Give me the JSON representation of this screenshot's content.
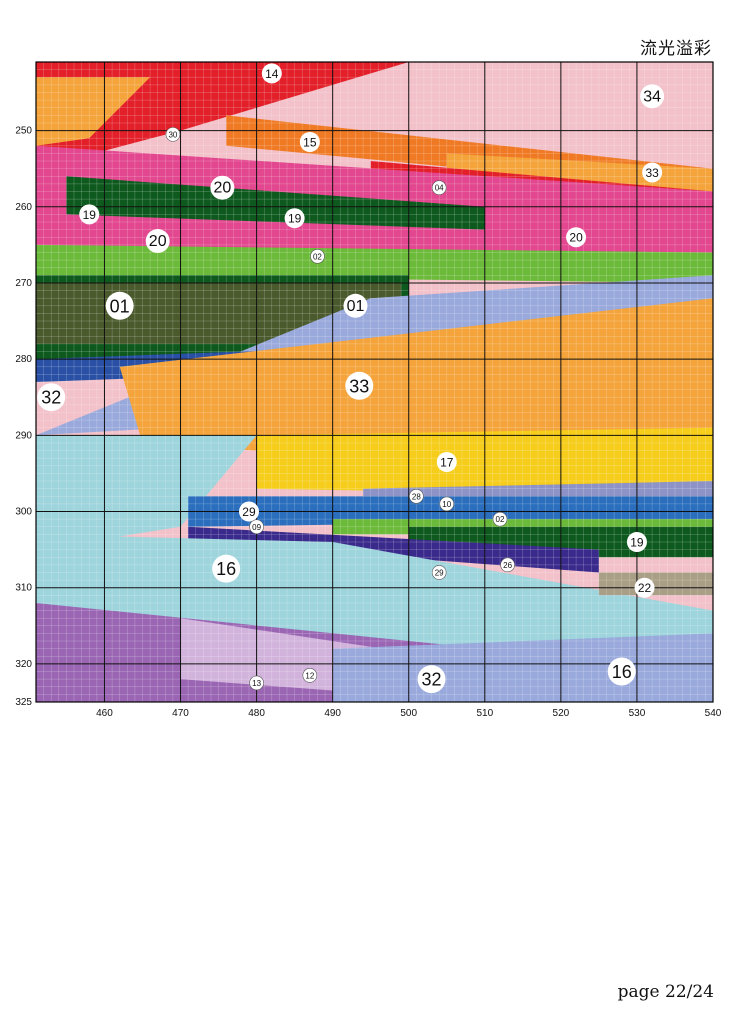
{
  "page": {
    "title": "流光溢彩",
    "footer": "page 22/24"
  },
  "chart_data": {
    "type": "heatmap",
    "x_ticks": [
      "460",
      "470",
      "480",
      "490",
      "500",
      "510",
      "520",
      "530",
      "540"
    ],
    "y_ticks": [
      "250",
      "260",
      "270",
      "280",
      "290",
      "300",
      "310",
      "320",
      "325"
    ],
    "xlim": [
      451,
      540
    ],
    "ylim": [
      241,
      325
    ],
    "grid": true,
    "bands": [
      {
        "code": "34",
        "color": "#f2c1c9",
        "edges": [
          [
            451,
            241
          ],
          [
            540,
            241
          ],
          [
            540,
            266
          ],
          [
            451,
            266
          ]
        ]
      },
      {
        "code": "14",
        "color": "#e3202a",
        "edges": [
          [
            451,
            241
          ],
          [
            500,
            241
          ],
          [
            470,
            250
          ],
          [
            451,
            255
          ]
        ]
      },
      {
        "code": "33",
        "color": "#f4a43a",
        "edges": [
          [
            451,
            243
          ],
          [
            466,
            243
          ],
          [
            458,
            251
          ],
          [
            451,
            252
          ]
        ]
      },
      {
        "code": "15",
        "color": "#f07a24",
        "edges": [
          [
            476,
            248
          ],
          [
            540,
            255
          ],
          [
            540,
            258
          ],
          [
            476,
            252
          ]
        ]
      },
      {
        "code": "33",
        "color": "#f4a43a",
        "edges": [
          [
            505,
            253
          ],
          [
            540,
            255
          ],
          [
            540,
            263
          ],
          [
            505,
            258
          ]
        ]
      },
      {
        "code": "14",
        "color": "#e3202a",
        "edges": [
          [
            495,
            254
          ],
          [
            540,
            258
          ],
          [
            540,
            261
          ],
          [
            495,
            257
          ]
        ]
      },
      {
        "code": "20",
        "color": "#e2478f",
        "edges": [
          [
            451,
            252
          ],
          [
            540,
            258
          ],
          [
            540,
            270
          ],
          [
            451,
            268
          ]
        ]
      },
      {
        "code": "19",
        "color": "#0e5a1e",
        "edges": [
          [
            455,
            256
          ],
          [
            510,
            260
          ],
          [
            510,
            263
          ],
          [
            455,
            261
          ]
        ]
      },
      {
        "code": "02",
        "color": "#6cba3a",
        "edges": [
          [
            451,
            265
          ],
          [
            540,
            266
          ],
          [
            540,
            270
          ],
          [
            451,
            269
          ]
        ]
      },
      {
        "code": "19",
        "color": "#0e5a1e",
        "edges": [
          [
            451,
            269
          ],
          [
            500,
            269
          ],
          [
            500,
            280
          ],
          [
            451,
            280
          ]
        ]
      },
      {
        "code": "01",
        "color": "#4a5a2c",
        "edges": [
          [
            451,
            270
          ],
          [
            499,
            270
          ],
          [
            499,
            278
          ],
          [
            451,
            278
          ]
        ]
      },
      {
        "code": "32",
        "color": "#99a9dc",
        "edges": [
          [
            495,
            272
          ],
          [
            540,
            269
          ],
          [
            540,
            285
          ],
          [
            451,
            290
          ]
        ]
      },
      {
        "code": "29",
        "color": "#2950a5",
        "edges": [
          [
            451,
            280
          ],
          [
            505,
            278
          ],
          [
            505,
            281
          ],
          [
            451,
            283
          ]
        ]
      },
      {
        "code": "33",
        "color": "#f4a43a",
        "edges": [
          [
            462,
            281
          ],
          [
            540,
            272
          ],
          [
            540,
            296
          ],
          [
            465,
            291
          ]
        ]
      },
      {
        "code": "17",
        "color": "#f5cd1a",
        "edges": [
          [
            480,
            290
          ],
          [
            540,
            289
          ],
          [
            540,
            298
          ],
          [
            480,
            297
          ]
        ]
      },
      {
        "code": "16",
        "color": "#9ed4dc",
        "edges": [
          [
            451,
            290
          ],
          [
            480,
            290
          ],
          [
            470,
            302
          ],
          [
            451,
            305
          ]
        ]
      },
      {
        "code": "10",
        "color": "#8d93c7",
        "edges": [
          [
            494,
            297
          ],
          [
            540,
            296
          ],
          [
            540,
            299
          ],
          [
            494,
            300
          ]
        ]
      },
      {
        "code": "29",
        "color": "#2a6ebd",
        "edges": [
          [
            471,
            298
          ],
          [
            540,
            298
          ],
          [
            540,
            301
          ],
          [
            471,
            302
          ]
        ]
      },
      {
        "code": "02",
        "color": "#6cba3a",
        "edges": [
          [
            490,
            301
          ],
          [
            540,
            301
          ],
          [
            540,
            303
          ],
          [
            490,
            303
          ]
        ]
      },
      {
        "code": "19",
        "color": "#0e5a1e",
        "edges": [
          [
            500,
            302
          ],
          [
            540,
            302
          ],
          [
            540,
            306
          ],
          [
            500,
            306
          ]
        ]
      },
      {
        "code": "09",
        "color": "#3a2a8c",
        "edges": [
          [
            471,
            302
          ],
          [
            525,
            305
          ],
          [
            525,
            308
          ],
          [
            471,
            304
          ]
        ]
      },
      {
        "code": "16",
        "color": "#9ed4dc",
        "edges": [
          [
            451,
            303
          ],
          [
            490,
            304
          ],
          [
            540,
            313
          ],
          [
            540,
            325
          ],
          [
            451,
            312
          ]
        ]
      },
      {
        "code": "22",
        "color": "#a99e86",
        "edges": [
          [
            525,
            308
          ],
          [
            540,
            308
          ],
          [
            540,
            311
          ],
          [
            525,
            311
          ]
        ]
      },
      {
        "code": "13",
        "color": "#9a66b3",
        "edges": [
          [
            451,
            312
          ],
          [
            510,
            318
          ],
          [
            510,
            325
          ],
          [
            451,
            325
          ]
        ]
      },
      {
        "code": "12",
        "color": "#d2b3dc",
        "edges": [
          [
            470,
            314
          ],
          [
            510,
            320
          ],
          [
            510,
            325
          ],
          [
            470,
            322
          ]
        ]
      },
      {
        "code": "32",
        "color": "#99a9dc",
        "edges": [
          [
            490,
            318
          ],
          [
            540,
            316
          ],
          [
            540,
            325
          ],
          [
            490,
            325
          ]
        ]
      }
    ],
    "labels": [
      {
        "text": "14",
        "x": 482,
        "y": 242.5,
        "size": "m"
      },
      {
        "text": "34",
        "x": 532,
        "y": 245.5,
        "size": "l"
      },
      {
        "text": "30",
        "x": 469,
        "y": 250.5,
        "size": "s"
      },
      {
        "text": "15",
        "x": 487,
        "y": 251.5,
        "size": "m"
      },
      {
        "text": "33",
        "x": 532,
        "y": 255.5,
        "size": "m"
      },
      {
        "text": "20",
        "x": 475.5,
        "y": 257.5,
        "size": "l"
      },
      {
        "text": "04",
        "x": 504,
        "y": 257.5,
        "size": "s"
      },
      {
        "text": "19",
        "x": 458,
        "y": 261,
        "size": "m"
      },
      {
        "text": "19",
        "x": 485,
        "y": 261.5,
        "size": "m"
      },
      {
        "text": "20",
        "x": 467,
        "y": 264.5,
        "size": "l"
      },
      {
        "text": "20",
        "x": 522,
        "y": 264,
        "size": "m"
      },
      {
        "text": "02",
        "x": 488,
        "y": 266.5,
        "size": "s"
      },
      {
        "text": "01",
        "x": 462,
        "y": 273,
        "size": "xl"
      },
      {
        "text": "01",
        "x": 493,
        "y": 273,
        "size": "l"
      },
      {
        "text": "32",
        "x": 453,
        "y": 285,
        "size": "xl"
      },
      {
        "text": "33",
        "x": 493.5,
        "y": 283.5,
        "size": "xl"
      },
      {
        "text": "17",
        "x": 505,
        "y": 293.5,
        "size": "m"
      },
      {
        "text": "28",
        "x": 501,
        "y": 298,
        "size": "s"
      },
      {
        "text": "29",
        "x": 479,
        "y": 300,
        "size": "m"
      },
      {
        "text": "10",
        "x": 505,
        "y": 299,
        "size": "s"
      },
      {
        "text": "02",
        "x": 512,
        "y": 301,
        "size": "s"
      },
      {
        "text": "09",
        "x": 480,
        "y": 302,
        "size": "s"
      },
      {
        "text": "19",
        "x": 530,
        "y": 304,
        "size": "m"
      },
      {
        "text": "16",
        "x": 476,
        "y": 307.5,
        "size": "xl"
      },
      {
        "text": "26",
        "x": 513,
        "y": 307,
        "size": "s"
      },
      {
        "text": "29",
        "x": 504,
        "y": 308,
        "size": "s"
      },
      {
        "text": "22",
        "x": 531,
        "y": 310,
        "size": "m"
      },
      {
        "text": "16",
        "x": 528,
        "y": 321,
        "size": "xl"
      },
      {
        "text": "32",
        "x": 503,
        "y": 322,
        "size": "xl"
      },
      {
        "text": "12",
        "x": 487,
        "y": 321.5,
        "size": "s"
      },
      {
        "text": "13",
        "x": 480,
        "y": 322.5,
        "size": "s"
      }
    ]
  }
}
